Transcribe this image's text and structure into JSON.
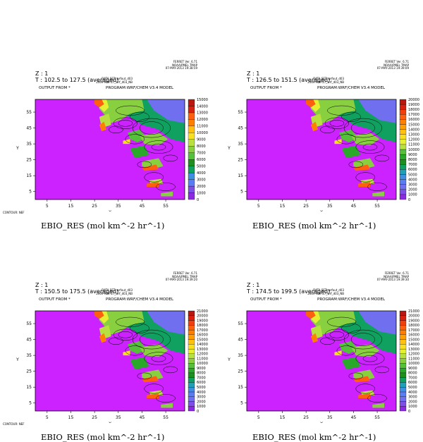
{
  "colors": {
    "background": "#cc22ff",
    "palette": [
      "#8a2be2",
      "#7d4fe6",
      "#6f6ff0",
      "#5a7cf4",
      "#3f8fe0",
      "#1fa0b8",
      "#10a060",
      "#1e8f1e",
      "#2aa82a",
      "#55c03a",
      "#88d040",
      "#b8e040",
      "#e6f032",
      "#f8e020",
      "#ffc010",
      "#ffa000",
      "#ff8000",
      "#ff6010",
      "#f04010",
      "#d82010",
      "#b81810"
    ]
  },
  "panels": [
    {
      "z_label": "Z : 1",
      "t_label": "T : 102.5 to 127.5 (averaged)",
      "output_label": "OUTPUT FROM *",
      "program_label": "PROGRAM:WRF/CHEM V3.4 MODEL",
      "info_top": [
        "FERRET Ver. 6.71",
        "NOAA/PMEL TMAP",
        "07-MAY-2013 19:38:59"
      ],
      "info_data": [
        "DATA SET: wrfout_d03",
        "2009-MAY-27_wrf_d03_NB"
      ],
      "contour_note": "CONTOUR: NEF",
      "caption": "EBIO_RES (mol km^-2 hr^-1)"
    },
    {
      "z_label": "Z : 1",
      "t_label": "T : 126.5 to 151.5 (averaged)",
      "output_label": "OUTPUT FROM *",
      "program_label": "PROGRAM:WRF/CHEM V3.4 MODEL",
      "info_top": [
        "FERRET Ver. 6.71",
        "NOAA/PMEL TMAP",
        "07-MAY-2013 19:39:09"
      ],
      "info_data": [
        "DATA SET: wrfout_d03",
        "2009-MAY-27_wrf_d03_NB"
      ],
      "contour_note": "",
      "caption": "EBIO_RES (mol km^-2 hr^-1)"
    },
    {
      "z_label": "Z : 1",
      "t_label": "T : 150.5 to 175.5 (averaged)",
      "output_label": "OUTPUT FROM *",
      "program_label": "PROGRAM:WRF/CHEM V3.4 MODEL",
      "info_top": [
        "FERRET Ver. 6.71",
        "NOAA/PMEL TMAP",
        "07-MAY-2013 19:39:20"
      ],
      "info_data": [
        "DATA SET: wrfout_d03",
        "2009-MAY-27_wrf_d03_NB"
      ],
      "contour_note": "CONTOUR: NEF",
      "caption": "EBIO_RES (mol km^-2 hr^-1)"
    },
    {
      "z_label": "Z : 1",
      "t_label": "T : 174.5 to 199.5 (averaged)",
      "output_label": "OUTPUT FROM *",
      "program_label": "PROGRAM:WRF/CHEM V3.4 MODEL",
      "info_top": [
        "FERRET Ver. 6.71",
        "NOAA/PMEL TMAP",
        "07-MAY-2013 19:39:30"
      ],
      "info_data": [
        "DATA SET: wrfout_d03",
        "2009-MAY-27_wrf_d03_NB"
      ],
      "contour_note": "",
      "caption": "EBIO_RES (mol km^-2 hr^-1)"
    }
  ],
  "chart_data": [
    {
      "type": "heatmap",
      "xlabel": "X",
      "ylabel": "Y",
      "xlim": [
        0,
        63
      ],
      "ylim": [
        0,
        63
      ],
      "x_ticks": [
        5,
        15,
        25,
        35,
        45,
        55
      ],
      "y_ticks": [
        5,
        15,
        25,
        35,
        45,
        55
      ],
      "colorbar_levels": [
        0,
        1000,
        2000,
        3000,
        4000,
        5000,
        6000,
        7000,
        8000,
        9000,
        10000,
        11000,
        12000,
        13000,
        14000,
        15000
      ],
      "grid": false,
      "legend": "right colorbar"
    },
    {
      "type": "heatmap",
      "xlabel": "X",
      "ylabel": "Y",
      "xlim": [
        0,
        63
      ],
      "ylim": [
        0,
        63
      ],
      "x_ticks": [
        5,
        15,
        25,
        35,
        45,
        55
      ],
      "y_ticks": [
        5,
        15,
        25,
        35,
        45,
        55
      ],
      "colorbar_levels": [
        0,
        1000,
        2000,
        3000,
        4000,
        5000,
        6000,
        7000,
        8000,
        9000,
        10000,
        11000,
        12000,
        13000,
        14000,
        15000,
        16000,
        17000,
        18000,
        19000,
        20000
      ],
      "grid": false,
      "legend": "right colorbar"
    },
    {
      "type": "heatmap",
      "xlabel": "X",
      "ylabel": "Y",
      "xlim": [
        0,
        63
      ],
      "ylim": [
        0,
        63
      ],
      "x_ticks": [
        5,
        15,
        25,
        35,
        45,
        55
      ],
      "y_ticks": [
        5,
        15,
        25,
        35,
        45,
        55
      ],
      "colorbar_levels": [
        0,
        1000,
        2000,
        3000,
        4000,
        5000,
        6000,
        7000,
        8000,
        9000,
        10000,
        11000,
        12000,
        13000,
        14000,
        15000,
        16000,
        17000,
        18000,
        19000,
        20000,
        21000
      ],
      "grid": false,
      "legend": "right colorbar"
    },
    {
      "type": "heatmap",
      "xlabel": "X",
      "ylabel": "Y",
      "xlim": [
        0,
        63
      ],
      "ylim": [
        0,
        63
      ],
      "x_ticks": [
        5,
        15,
        25,
        35,
        45,
        55
      ],
      "y_ticks": [
        5,
        15,
        25,
        35,
        45,
        55
      ],
      "colorbar_levels": [
        0,
        1000,
        2000,
        3000,
        4000,
        5000,
        6000,
        7000,
        8000,
        9000,
        10000,
        11000,
        12000,
        13000,
        14000,
        15000,
        16000,
        17000,
        18000,
        19000,
        20000,
        21000
      ],
      "grid": false,
      "legend": "right colorbar"
    }
  ]
}
